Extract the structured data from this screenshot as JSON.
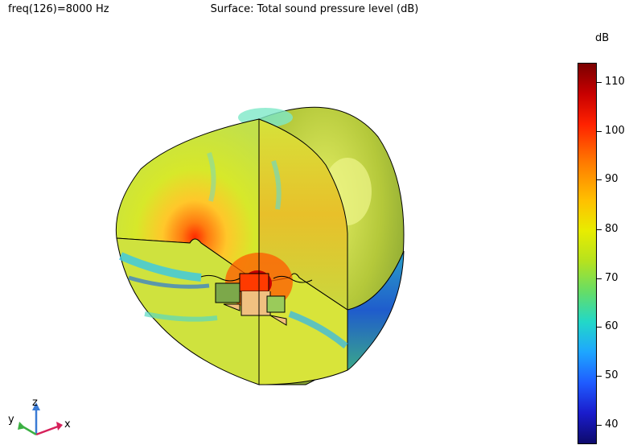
{
  "header": {
    "frequency_label": "freq(126)=8000 Hz",
    "plot_title": "Surface: Total sound pressure level (dB)"
  },
  "colorbar": {
    "unit": "dB",
    "ticks": [
      "110",
      "100",
      "90",
      "80",
      "70",
      "60",
      "50",
      "40"
    ],
    "range": [
      37,
      113
    ],
    "colors": [
      "#7a0000",
      "#ff2200",
      "#ffc000",
      "#e8ec00",
      "#66dd66",
      "#22d8c8",
      "#1ea6ff",
      "#0d0a6b"
    ]
  },
  "axes_triad": {
    "x_label": "x",
    "y_label": "y",
    "z_label": "z",
    "x_color": "#d6205a",
    "y_color": "#3cb043",
    "z_color": "#3a7bd5"
  }
}
